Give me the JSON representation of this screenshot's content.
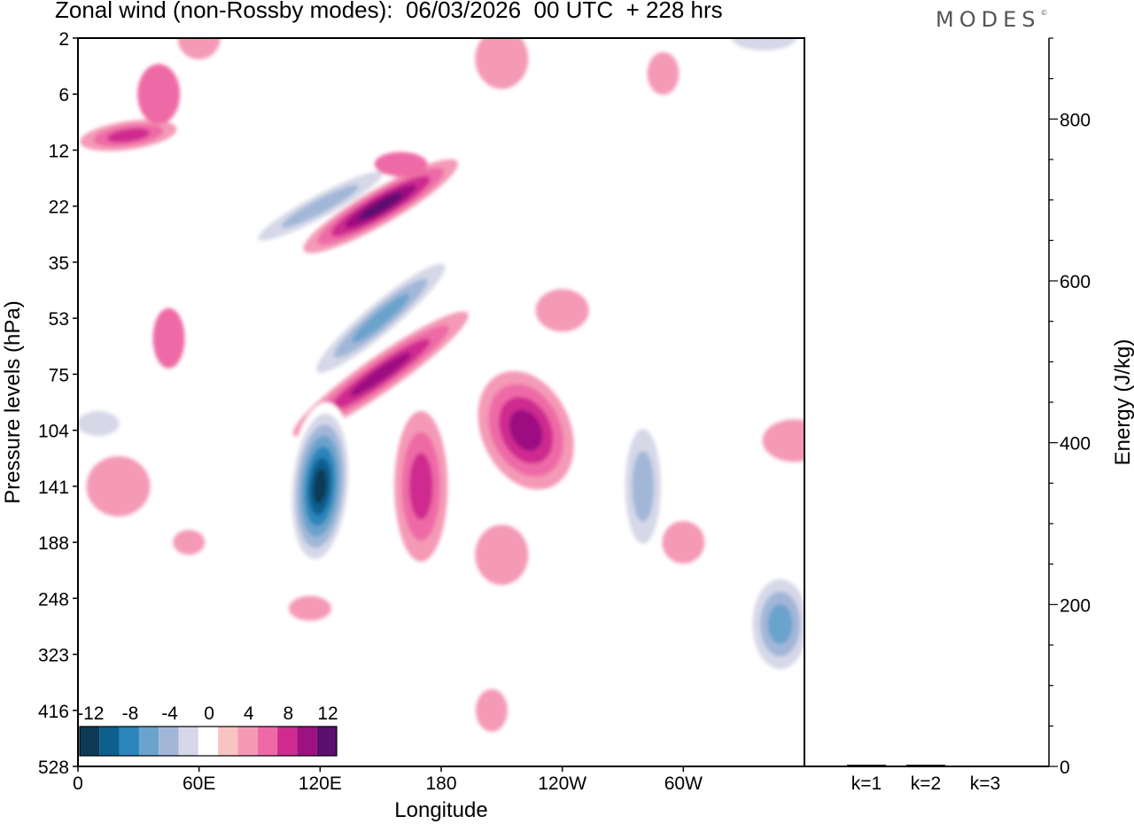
{
  "title": "Zonal wind (non-Rossby modes):  06/03/2026  00 UTC  + 228 hrs",
  "logo": "MODES",
  "logo_mark": "©",
  "chart_data": [
    {
      "type": "heatmap",
      "title": "Zonal wind (non-Rossby modes):  06/03/2026  00 UTC  + 228 hrs",
      "xlabel": "Longitude",
      "ylabel": "Pressure levels (hPa)",
      "x_ticks": [
        "0",
        "60E",
        "120E",
        "180",
        "120W",
        "60W"
      ],
      "x_tick_values": [
        0,
        60,
        120,
        180,
        240,
        300
      ],
      "xlim": [
        0,
        360
      ],
      "y_ticks": [
        "2",
        "6",
        "12",
        "22",
        "35",
        "53",
        "75",
        "104",
        "141",
        "188",
        "248",
        "323",
        "416",
        "528"
      ],
      "colorbar": {
        "labels": [
          "-12",
          "-8",
          "-4",
          "0",
          "4",
          "8",
          "12"
        ],
        "levels": [
          -14,
          -12,
          -10,
          -8,
          -6,
          -4,
          -2,
          2,
          4,
          6,
          8,
          10,
          12,
          14
        ],
        "colors": [
          "#0d3a57",
          "#0e5f8e",
          "#2c85bb",
          "#6aa3cc",
          "#a2b7d8",
          "#d6d8e8",
          "#ffffff",
          "#f8c4c2",
          "#f49ab6",
          "#ee6aa6",
          "#cf2b8f",
          "#9d1181",
          "#5b0f6e"
        ]
      },
      "features": [
        {
          "name": "stratospheric-positive-streak",
          "lon": 25,
          "level": 10,
          "value": 6
        },
        {
          "name": "upper-negative-band",
          "lon": 120,
          "level": 22,
          "value": -6
        },
        {
          "name": "upper-positive-band",
          "lon": 150,
          "level": 22,
          "value": 10
        },
        {
          "name": "mid-negative-band",
          "lon": 150,
          "level": 53,
          "value": -8
        },
        {
          "name": "mid-positive-band",
          "lon": 150,
          "level": 75,
          "value": 8
        },
        {
          "name": "upper-trop-positive-core",
          "lon": 222,
          "level": 104,
          "value": 9
        },
        {
          "name": "upper-trop-negative-core",
          "lon": 120,
          "level": 141,
          "value": -14
        },
        {
          "name": "upper-trop-positive-dateline",
          "lon": 170,
          "level": 141,
          "value": 6
        },
        {
          "name": "lower-negative-west",
          "lon": 280,
          "level": 141,
          "value": -6
        },
        {
          "name": "lower-negative-core-east",
          "lon": 348,
          "level": 280,
          "value": -8
        }
      ]
    },
    {
      "type": "bar",
      "title": "",
      "categories": [
        "k=1",
        "k=2",
        "k=3"
      ],
      "values": [
        2,
        2,
        1
      ],
      "ylabel": "Energy (J/kg)",
      "ylim": [
        0,
        900
      ],
      "y_ticks": [
        0,
        200,
        400,
        600,
        800
      ]
    }
  ]
}
